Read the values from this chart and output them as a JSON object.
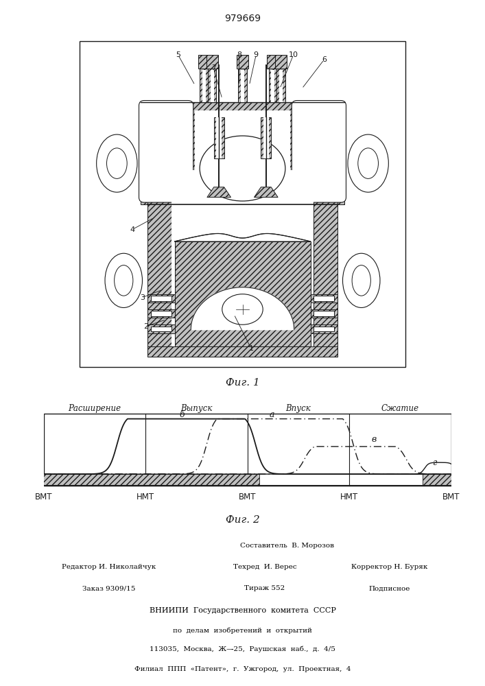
{
  "patent_number": "979669",
  "fig1_caption": "Фиг. 1",
  "fig2_caption": "Фиг. 2",
  "bg_color": "#ffffff",
  "lc": "#1a1a1a",
  "hc": "#c0c0c0",
  "section_labels": [
    "Расширение",
    "Выпуск",
    "Впуск",
    "Сжатие"
  ],
  "x_labels": [
    "ВМТ",
    "НМТ",
    "ВМТ",
    "НМТ",
    "ВМТ"
  ],
  "footer_col1_line1": "Редактор И. Николайчук",
  "footer_col1_line2": "Заказ 9309/15",
  "footer_col2_line1": "Составитель  В. Морозов",
  "footer_col2_line2": "Техред  И. Верес",
  "footer_col2_line3": "Тираж 552",
  "footer_col3_line2": "Корректор Н. Буряк",
  "footer_col3_line3": "Подписное",
  "footer_vniipи": "ВНИИПИ  Государственного  комитета  СССР",
  "footer_line5": "по  делам  изобретений  и  открытий",
  "footer_line6": "113035,  Москва,  Ж—̵25,  Раушская  наб.,  д.  4/5",
  "footer_line7": "Филиал  ППП  «Патент»,  г.  Ужгород,  ул.  Проектная,  4"
}
